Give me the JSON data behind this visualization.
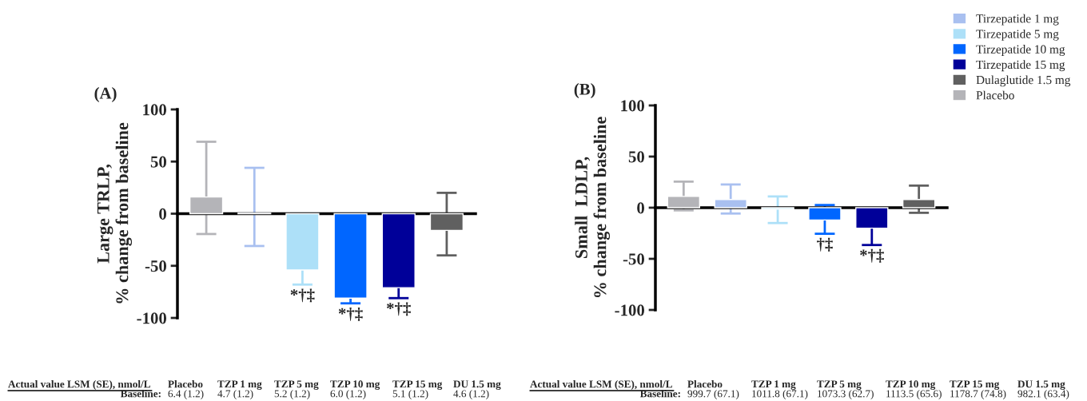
{
  "chart_data": [
    {
      "type": "bar",
      "title": "(A)",
      "ylabel": "Large TRLP,\n% change from baseline",
      "categories": [
        null,
        null,
        null,
        null,
        null,
        null
      ],
      "ylim": [
        -100,
        100
      ],
      "yticks": [
        -100,
        -50,
        0,
        50,
        100
      ],
      "series": [
        {
          "color": "#a9c0f0",
          "values": [
            null,
            0.5,
            null,
            null,
            null,
            null
          ],
          "errors": [
            null,
            [
              -31,
              44
            ],
            null,
            null,
            null,
            null
          ]
        },
        {
          "color": "#ade0f8",
          "values": [
            null,
            null,
            -54,
            null,
            null,
            null
          ],
          "errors": [
            null,
            null,
            14,
            null,
            null,
            null
          ],
          "value_labels": [
            null,
            null,
            "*†‡",
            null,
            null,
            null
          ]
        },
        {
          "color": "#0066ff",
          "values": [
            null,
            null,
            null,
            -81,
            null,
            null
          ],
          "errors": [
            null,
            null,
            null,
            5,
            null,
            null
          ],
          "value_labels": [
            null,
            null,
            null,
            "*†‡",
            null,
            null
          ]
        },
        {
          "color": "#000099",
          "values": [
            null,
            null,
            null,
            null,
            -71,
            null
          ],
          "errors": [
            null,
            null,
            null,
            null,
            10,
            null
          ],
          "value_labels": [
            null,
            null,
            null,
            null,
            "*†‡",
            null
          ]
        },
        {
          "color": "#606060",
          "values": [
            null,
            null,
            null,
            null,
            null,
            -16
          ],
          "errors": [
            null,
            null,
            null,
            null,
            null,
            [
              -40,
              20
            ]
          ]
        },
        {
          "color": "#b4b4b8",
          "values": [
            16,
            null,
            null,
            null,
            null,
            null
          ],
          "errors": [
            [
              -19.5,
              69
            ],
            null,
            null,
            null,
            null,
            null
          ]
        }
      ],
      "annotations": [
        "Actual value LSM (SE), nmol/L",
        "Placebo",
        "TZP 1 mg",
        "TZP 5 mg",
        "TZP 10 mg",
        "TZP 15 mg",
        "DU 1.5 mg",
        "Baseline:",
        "6.4 (1.2)",
        "4.7 (1.2)",
        "5.2 (1.2)",
        "6.0 (1.2)",
        "5.1 (1.2)",
        "4.6 (1.2)"
      ]
    },
    {
      "type": "bar",
      "title": "(B)",
      "ylabel": "Small  LDLP,\n% change from baseline",
      "categories": [
        null,
        null,
        null,
        null,
        null,
        null
      ],
      "ylim": [
        -100,
        100
      ],
      "yticks": [
        -100,
        -50,
        0,
        50,
        100
      ],
      "legend": "top right",
      "series": [
        {
          "name": "Tirzepatide 1 mg",
          "color": "#a9c0f0",
          "values": [
            null,
            8,
            null,
            null,
            null,
            null
          ],
          "errors": [
            null,
            [
              -5.7,
              22.7
            ],
            null,
            null,
            null,
            null
          ]
        },
        {
          "name": "Tirzepatide 5 mg",
          "color": "#ade0f8",
          "values": [
            null,
            null,
            -1.5,
            null,
            null,
            null
          ],
          "errors": [
            null,
            null,
            [
              -15,
              11
            ],
            null,
            null,
            null
          ]
        },
        {
          "name": "Tirzepatide 10 mg",
          "color": "#0066ff",
          "values": [
            null,
            null,
            null,
            -12,
            null,
            null
          ],
          "errors": [
            null,
            null,
            null,
            [
              -25.5,
              2.6
            ],
            null,
            null
          ],
          "value_labels": [
            null,
            null,
            null,
            "†‡",
            null,
            null
          ]
        },
        {
          "name": "Tirzepatide 15 mg",
          "color": "#000099",
          "values": [
            null,
            null,
            null,
            null,
            -20,
            null
          ],
          "errors": [
            null,
            null,
            null,
            null,
            16.5,
            null
          ],
          "value_labels": [
            null,
            null,
            null,
            null,
            "*†‡",
            null
          ]
        },
        {
          "name": "Dulaglutide 1.5 mg",
          "color": "#606060",
          "values": [
            null,
            null,
            null,
            null,
            null,
            8
          ],
          "errors": [
            null,
            null,
            null,
            null,
            null,
            [
              -5,
              21.6
            ]
          ]
        },
        {
          "name": "Placebo",
          "color": "#b4b4b8",
          "values": [
            11,
            null,
            null,
            null,
            null,
            null
          ],
          "errors": [
            [
              -2.6,
              25.5
            ],
            null,
            null,
            null,
            null,
            null
          ]
        }
      ],
      "annotations": [
        "Actual value LSM (SE), nmol/L",
        "Placebo",
        "TZP 1 mg",
        "TZP 5 mg",
        "TZP 10 mg",
        "TZP 15 mg",
        "DU 1.5 mg",
        "Baseline:",
        "999.7 (67.1)",
        "1011.8 (67.1)",
        "1073.3 (62.7)",
        "1113.5 (65.6)",
        "1178.7 (74.8)",
        "982.1 (63.4)"
      ]
    }
  ]
}
